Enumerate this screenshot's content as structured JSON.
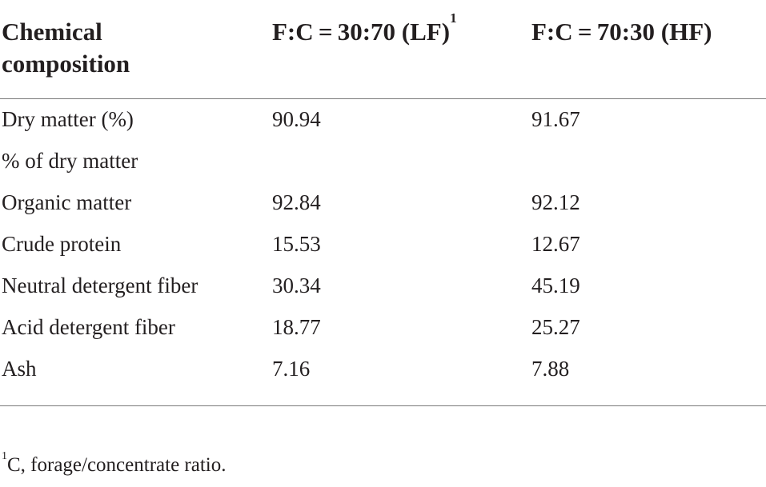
{
  "table": {
    "headers": [
      "Chemical composition",
      "F:C = 30:70 (LF)",
      "F:C = 70:30 (HF)"
    ],
    "header_1_sup": "1",
    "header_0_line1": "Chemical",
    "header_0_line2": "composition",
    "rows": [
      [
        "Dry matter (%)",
        "90.94",
        "91.67"
      ],
      [
        "% of dry matter",
        "",
        ""
      ],
      [
        "Organic matter",
        "92.84",
        "92.12"
      ],
      [
        "Crude protein",
        "15.53",
        "12.67"
      ],
      [
        "Neutral detergent fiber",
        "30.34",
        "45.19"
      ],
      [
        "Acid detergent fiber",
        "18.77",
        "25.27"
      ],
      [
        "Ash",
        "7.16",
        "7.88"
      ]
    ]
  },
  "footnote": {
    "marker": "1",
    "text": "C, forage/concentrate ratio."
  },
  "colors": {
    "text": "#231f20",
    "rule": "#7a7a7a"
  }
}
